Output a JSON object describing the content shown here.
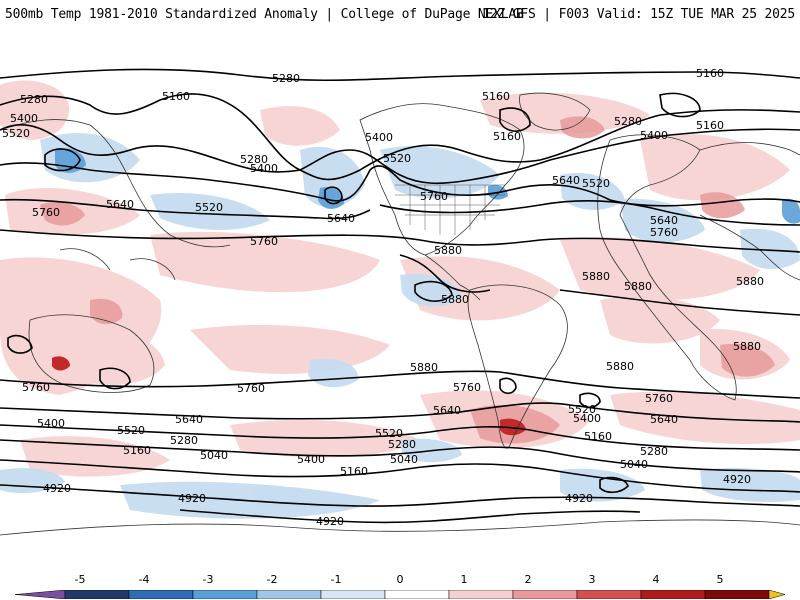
{
  "header": {
    "title_left": "500mb Temp 1981-2010 Standardized Anomaly | College of DuPage NEXLAB",
    "title_right": "12Z GFS | F003 Valid: 15Z TUE MAR 25 2025"
  },
  "map": {
    "contour_labels": {
      "c5280_a": "5280",
      "c5160_a": "5160",
      "c5280_b": "5280",
      "c5400_a": "5400",
      "c5520_a": "5520",
      "c5280_c": "5280",
      "c5400_b": "5400",
      "c5400_c": "5400",
      "c5520_b": "5520",
      "c5160_b": "5160",
      "c5160_c": "5160",
      "c5160_d": "5160",
      "c5280_d": "5280",
      "c5400_d": "5400",
      "c5160_e": "5160",
      "c5640_a": "5640",
      "c5520_c": "5520",
      "c5760_a": "5760",
      "c5640_b": "5640",
      "c5520_d": "5520",
      "c5760_b": "5760",
      "c5640_c": "5640",
      "c5760_c": "5760",
      "c5880_a": "5880",
      "c5880_b": "5880",
      "c5880_c": "5880",
      "c5880_d": "5880",
      "c5880_e": "5880",
      "c5880_f": "5880",
      "c5880_g": "5880",
      "c5880_h": "5880",
      "c5760_d": "5760",
      "c5760_e": "5760",
      "c5760_f": "5760",
      "c5760_g": "5760",
      "c5640_d": "5640",
      "c5640_e": "5640",
      "c5640_f": "5640",
      "c5520_e": "5520",
      "c5520_f": "5520",
      "c5520_g": "5520",
      "c5400_e": "5400",
      "c5400_f": "5400",
      "c5400_g": "5400",
      "c5280_e": "5280",
      "c5280_f": "5280",
      "c5280_g": "5280",
      "c5160_f": "5160",
      "c5160_g": "5160",
      "c5160_h": "5160",
      "c5040_a": "5040",
      "c5040_b": "5040",
      "c5040_c": "5040",
      "c4920_a": "4920",
      "c4920_b": "4920",
      "c4920_c": "4920",
      "c4920_d": "4920",
      "c4920_e": "4920"
    }
  },
  "colorbar": {
    "ticks": [
      "-5",
      "-4",
      "-3",
      "-2",
      "-1",
      "0",
      "1",
      "2",
      "3",
      "4",
      "5"
    ],
    "colors": [
      "#7b4fa0",
      "#223a6b",
      "#2f6cb3",
      "#5a9fd6",
      "#9fc6e6",
      "#d8e6f3",
      "#ffffff",
      "#f5d0d0",
      "#e89a9a",
      "#d45050",
      "#b01c1c",
      "#7d0a0a",
      "#f0c020"
    ]
  }
}
